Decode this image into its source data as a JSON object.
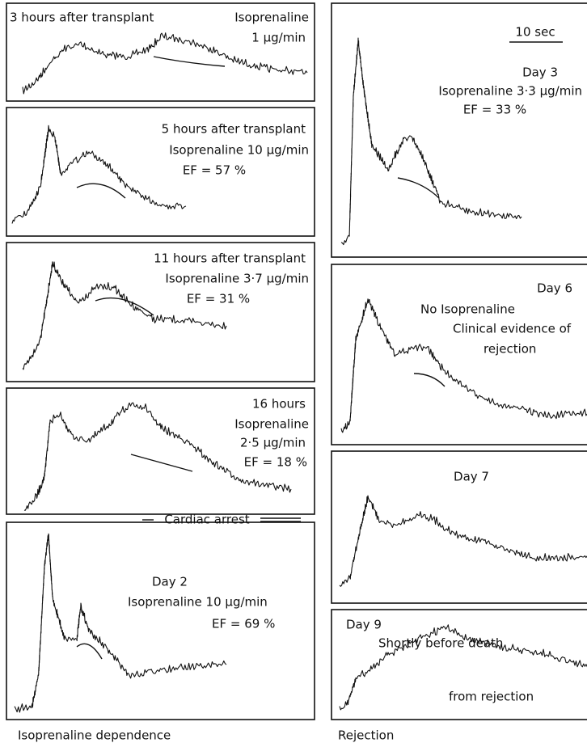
{
  "left_panels": [
    {
      "lines": [
        "3 hours after transplant",
        "Isoprenaline",
        "1 μg/min"
      ]
    },
    {
      "lines": [
        "5 hours after transplant",
        "Isoprenaline 10 μg/min",
        "EF = 57 %"
      ]
    },
    {
      "lines": [
        "11 hours after transplant",
        "Isoprenaline 3·7 μg/min",
        "EF = 31 %"
      ]
    },
    {
      "lines": [
        "16 hours",
        "Isoprenaline",
        "2·5 μg/min",
        "EF = 18 %"
      ]
    },
    {
      "lines": [
        "Day 2",
        "Isoprenaline 10 μg/min",
        "EF = 69 %"
      ]
    }
  ],
  "cardiac_arrest": "Cardiac arrest",
  "left_caption": "Isoprenaline dependence",
  "scale_bar": "10 sec",
  "right_panels": [
    {
      "lines": [
        "Day 3",
        "Isoprenaline 3·3 μg/min",
        "EF = 33 %"
      ]
    },
    {
      "lines": [
        "Day 6",
        "No Isoprenaline",
        "Clinical evidence of",
        "rejection"
      ]
    },
    {
      "lines": [
        "Day 7"
      ]
    },
    {
      "lines": [
        "Day 9",
        "Shortly before death",
        "from rejection"
      ]
    }
  ],
  "right_caption": "Rejection"
}
